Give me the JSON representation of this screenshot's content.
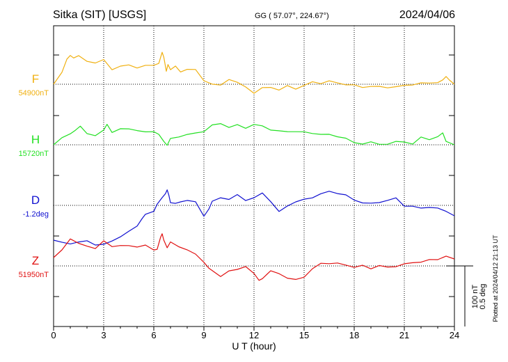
{
  "header": {
    "station": "Sitka (SIT)  [USGS]",
    "coords": "GG ( 57.07°, 224.67°)",
    "date": "2024/04/06"
  },
  "side_note": "Plotted at 2024/04/12 21:13 UT",
  "scale_bar": {
    "line1": "100 nT",
    "line2": "0.5 deg"
  },
  "chart_data": {
    "type": "line",
    "title": "Sitka (SIT)  [USGS]",
    "xlabel": "U T (hour)",
    "xlim": [
      0,
      24
    ],
    "xticks": [
      "0",
      "3",
      "6",
      "9",
      "12",
      "15",
      "18",
      "21",
      "24"
    ],
    "grid": true,
    "series": [
      {
        "name": "F",
        "baseline_label": "54900nT",
        "color": "#f0b010",
        "x": [
          0,
          0.5,
          0.8,
          1.0,
          1.2,
          1.5,
          2.0,
          2.5,
          3.0,
          3.5,
          4.0,
          4.5,
          5.0,
          5.5,
          6.0,
          6.3,
          6.5,
          6.6,
          6.75,
          6.85,
          7.0,
          7.3,
          7.6,
          8.0,
          8.5,
          9.0,
          9.5,
          10.0,
          10.5,
          11.0,
          11.5,
          12.0,
          12.5,
          13.0,
          13.5,
          14.0,
          14.5,
          15.0,
          15.5,
          16.0,
          16.5,
          17.0,
          17.5,
          18.0,
          18.5,
          19.0,
          19.5,
          20.0,
          20.5,
          21.0,
          21.5,
          22.0,
          22.5,
          23.0,
          23.3,
          23.5,
          23.7,
          24.0
        ],
        "values": [
          0,
          18,
          35,
          42,
          38,
          40,
          34,
          30,
          35,
          22,
          25,
          28,
          24,
          26,
          28,
          30,
          45,
          40,
          18,
          28,
          22,
          25,
          18,
          22,
          20,
          6,
          0,
          -2,
          8,
          2,
          -4,
          -12,
          -6,
          -4,
          -8,
          -3,
          -6,
          -2,
          3,
          2,
          4,
          2,
          0,
          -2,
          -4,
          -3,
          -4,
          -4,
          -4,
          -2,
          0,
          1,
          2,
          3,
          5,
          12,
          6,
          0
        ]
      },
      {
        "name": "H",
        "baseline_label": "15720nT",
        "color": "#22e022",
        "x": [
          0,
          0.5,
          1.0,
          1.3,
          1.6,
          2.0,
          2.5,
          3.0,
          3.2,
          3.5,
          4.0,
          4.5,
          5.0,
          5.5,
          6.0,
          6.3,
          6.6,
          6.8,
          7.0,
          7.5,
          8.0,
          8.5,
          9.0,
          9.5,
          10.0,
          10.5,
          11.0,
          11.5,
          12.0,
          12.5,
          13.0,
          13.5,
          14.0,
          14.5,
          15.0,
          15.5,
          16.0,
          16.5,
          17.0,
          17.5,
          18.0,
          18.5,
          19.0,
          19.5,
          20.0,
          20.5,
          21.0,
          21.5,
          22.0,
          22.5,
          23.0,
          23.3,
          23.5,
          24.0
        ],
        "values": [
          0,
          10,
          15,
          22,
          26,
          16,
          14,
          20,
          30,
          18,
          22,
          24,
          20,
          18,
          20,
          14,
          5,
          0,
          8,
          12,
          15,
          16,
          20,
          28,
          30,
          26,
          28,
          24,
          30,
          26,
          22,
          20,
          18,
          20,
          18,
          16,
          16,
          14,
          12,
          10,
          2,
          2,
          4,
          0,
          2,
          4,
          4,
          2,
          10,
          8,
          12,
          16,
          6,
          0
        ]
      },
      {
        "name": "D",
        "baseline_label": "-1.2deg",
        "color": "#1010d0",
        "x": [
          0,
          0.5,
          1.0,
          1.5,
          2.0,
          2.5,
          3.0,
          3.5,
          4.0,
          4.5,
          5.0,
          5.3,
          5.5,
          6.0,
          6.2,
          6.5,
          6.7,
          6.8,
          6.9,
          7.0,
          7.3,
          7.6,
          8.0,
          8.5,
          9.0,
          9.3,
          9.5,
          10.0,
          10.5,
          11.0,
          11.5,
          12.0,
          12.5,
          13.0,
          13.5,
          14.0,
          14.5,
          15.0,
          15.5,
          16.0,
          16.5,
          17.0,
          17.5,
          18.0,
          18.5,
          19.0,
          19.5,
          20.0,
          20.5,
          21.0,
          21.5,
          22.0,
          22.5,
          23.0,
          23.5,
          24.0
        ],
        "values": [
          -50,
          -54,
          -55,
          -52,
          -52,
          -56,
          -56,
          -52,
          -44,
          -38,
          -30,
          -18,
          -14,
          -8,
          2,
          10,
          18,
          22,
          14,
          5,
          2,
          5,
          8,
          4,
          -15,
          -5,
          5,
          12,
          8,
          15,
          8,
          10,
          18,
          6,
          -10,
          0,
          5,
          8,
          12,
          16,
          20,
          18,
          14,
          8,
          4,
          2,
          5,
          7,
          10,
          0,
          -2,
          -4,
          -2,
          -5,
          -8,
          -15
        ]
      },
      {
        "name": "Z",
        "baseline_label": "51950nT",
        "color": "#e01010",
        "x": [
          0,
          0.5,
          1.0,
          1.5,
          2.0,
          2.5,
          3.0,
          3.5,
          4.0,
          4.5,
          5.0,
          5.5,
          6.0,
          6.2,
          6.4,
          6.5,
          6.6,
          6.8,
          7.0,
          7.5,
          8.0,
          8.5,
          9.0,
          9.3,
          10.0,
          10.5,
          11.0,
          11.5,
          12.0,
          12.3,
          12.5,
          13.0,
          13.5,
          14.0,
          14.5,
          15.0,
          15.5,
          16.0,
          16.5,
          17.0,
          17.5,
          18.0,
          18.5,
          19.0,
          19.5,
          20.0,
          20.5,
          21.0,
          21.5,
          22.0,
          22.5,
          23.0,
          23.5,
          24.0
        ],
        "values": [
          12,
          22,
          40,
          32,
          28,
          26,
          35,
          28,
          30,
          28,
          28,
          30,
          22,
          25,
          40,
          46,
          38,
          25,
          35,
          28,
          22,
          18,
          5,
          -4,
          -14,
          -8,
          -5,
          0,
          -12,
          -20,
          -18,
          -8,
          -10,
          -18,
          -20,
          -15,
          -5,
          4,
          4,
          3,
          2,
          -2,
          0,
          -3,
          0,
          -2,
          0,
          2,
          5,
          6,
          8,
          10,
          14,
          10
        ]
      }
    ]
  }
}
